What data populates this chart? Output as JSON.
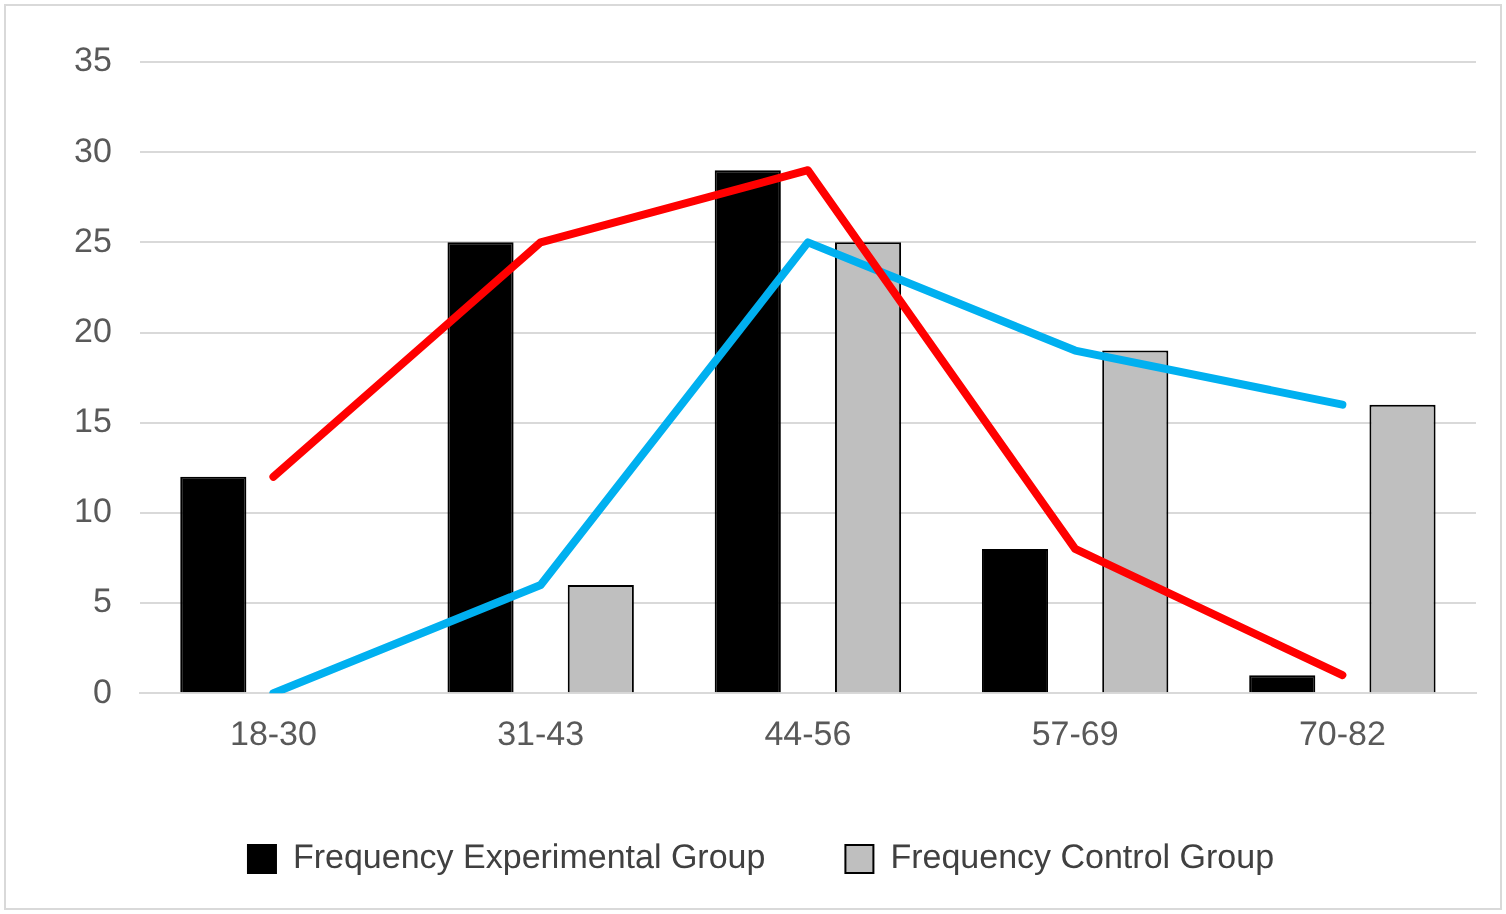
{
  "chart_data": {
    "type": "bar",
    "categories": [
      "18-30",
      "31-43",
      "44-56",
      "57-69",
      "70-82"
    ],
    "series": [
      {
        "name": "Frequency Experimental Group",
        "color": "#000000",
        "values": [
          12,
          25,
          29,
          8,
          1
        ]
      },
      {
        "name": "Frequency Control Group",
        "color": "#bfbfbf",
        "values": [
          0,
          6,
          25,
          19,
          16
        ]
      },
      {
        "type": "line",
        "color": "#ff0000",
        "values": [
          12,
          25,
          29,
          8,
          1
        ]
      },
      {
        "type": "line",
        "color": "#00b0f0",
        "values": [
          0,
          6,
          25,
          19,
          16
        ]
      }
    ],
    "ylim": [
      0,
      35
    ],
    "yticks": [
      0,
      5,
      10,
      15,
      20,
      25,
      30,
      35
    ],
    "grid": "y",
    "legend": "bottom",
    "marker": "none",
    "line_style": "solid"
  }
}
